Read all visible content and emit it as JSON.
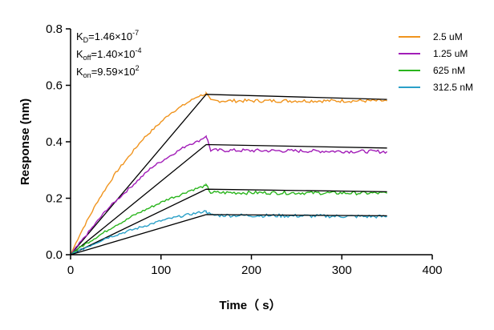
{
  "chart_data": {
    "type": "line",
    "title": "",
    "xlabel": "Time（ s）",
    "ylabel": "Response (nm)",
    "xlim": [
      0,
      400
    ],
    "ylim": [
      0,
      0.8
    ],
    "xticks": [
      0,
      100,
      200,
      300,
      400
    ],
    "yticks": [
      0.0,
      0.2,
      0.4,
      0.6,
      0.8
    ],
    "xtick_labels": [
      "0",
      "100",
      "200",
      "300",
      "400"
    ],
    "ytick_labels": [
      "0.0",
      "0.2",
      "0.4",
      "0.6",
      "0.8"
    ],
    "grid": false,
    "legend_position": "top-right",
    "constants": {
      "kd": {
        "base": "K",
        "sub": "D",
        "value": "=1.46×10",
        "exp": "-7"
      },
      "koff": {
        "base": "K",
        "sub": "off",
        "value": "=1.40×10",
        "exp": "-4"
      },
      "kon": {
        "base": "K",
        "sub": "on",
        "value": "=9.59×10",
        "exp": "2"
      }
    },
    "association_end": 150,
    "end_time": 350,
    "series": [
      {
        "name": "2.5 uM",
        "color": "#f0941e",
        "assoc": [
          [
            0,
            0
          ],
          [
            10,
            0.07
          ],
          [
            20,
            0.13
          ],
          [
            30,
            0.19
          ],
          [
            40,
            0.24
          ],
          [
            50,
            0.29
          ],
          [
            60,
            0.33
          ],
          [
            70,
            0.37
          ],
          [
            80,
            0.41
          ],
          [
            90,
            0.44
          ],
          [
            100,
            0.47
          ],
          [
            110,
            0.5
          ],
          [
            120,
            0.52
          ],
          [
            130,
            0.54
          ],
          [
            140,
            0.56
          ],
          [
            150,
            0.57
          ]
        ],
        "dissoc": [
          [
            150,
            0.57
          ],
          [
            155,
            0.545
          ],
          [
            350,
            0.545
          ]
        ],
        "fit": [
          [
            0,
            0
          ],
          [
            150,
            0.568
          ],
          [
            350,
            0.55
          ]
        ]
      },
      {
        "name": "1.25 uM",
        "color": "#a21db8",
        "assoc": [
          [
            0,
            0
          ],
          [
            10,
            0.04
          ],
          [
            20,
            0.08
          ],
          [
            30,
            0.12
          ],
          [
            40,
            0.16
          ],
          [
            50,
            0.19
          ],
          [
            60,
            0.22
          ],
          [
            70,
            0.25
          ],
          [
            80,
            0.28
          ],
          [
            90,
            0.31
          ],
          [
            100,
            0.33
          ],
          [
            110,
            0.35
          ],
          [
            120,
            0.37
          ],
          [
            130,
            0.39
          ],
          [
            140,
            0.4
          ],
          [
            150,
            0.42
          ]
        ],
        "dissoc": [
          [
            150,
            0.42
          ],
          [
            155,
            0.37
          ],
          [
            350,
            0.365
          ]
        ],
        "fit": [
          [
            0,
            0
          ],
          [
            150,
            0.39
          ],
          [
            350,
            0.378
          ]
        ]
      },
      {
        "name": "625 nM",
        "color": "#2ab51d",
        "assoc": [
          [
            0,
            0
          ],
          [
            10,
            0.025
          ],
          [
            20,
            0.045
          ],
          [
            30,
            0.065
          ],
          [
            40,
            0.085
          ],
          [
            50,
            0.105
          ],
          [
            60,
            0.12
          ],
          [
            70,
            0.14
          ],
          [
            80,
            0.155
          ],
          [
            90,
            0.17
          ],
          [
            100,
            0.185
          ],
          [
            110,
            0.2
          ],
          [
            120,
            0.21
          ],
          [
            130,
            0.225
          ],
          [
            140,
            0.235
          ],
          [
            150,
            0.245
          ]
        ],
        "dissoc": [
          [
            150,
            0.245
          ],
          [
            155,
            0.22
          ],
          [
            350,
            0.218
          ]
        ],
        "fit": [
          [
            0,
            0
          ],
          [
            150,
            0.232
          ],
          [
            350,
            0.223
          ]
        ]
      },
      {
        "name": "312.5 nM",
        "color": "#2aa0c8",
        "assoc": [
          [
            0,
            0
          ],
          [
            10,
            0.015
          ],
          [
            20,
            0.03
          ],
          [
            30,
            0.045
          ],
          [
            40,
            0.06
          ],
          [
            50,
            0.07
          ],
          [
            60,
            0.08
          ],
          [
            70,
            0.09
          ],
          [
            80,
            0.1
          ],
          [
            90,
            0.11
          ],
          [
            100,
            0.12
          ],
          [
            110,
            0.128
          ],
          [
            120,
            0.135
          ],
          [
            130,
            0.142
          ],
          [
            140,
            0.148
          ],
          [
            150,
            0.155
          ]
        ],
        "dissoc": [
          [
            150,
            0.155
          ],
          [
            155,
            0.14
          ],
          [
            350,
            0.135
          ]
        ],
        "fit": [
          [
            0,
            0
          ],
          [
            150,
            0.142
          ],
          [
            350,
            0.138
          ]
        ]
      }
    ]
  }
}
